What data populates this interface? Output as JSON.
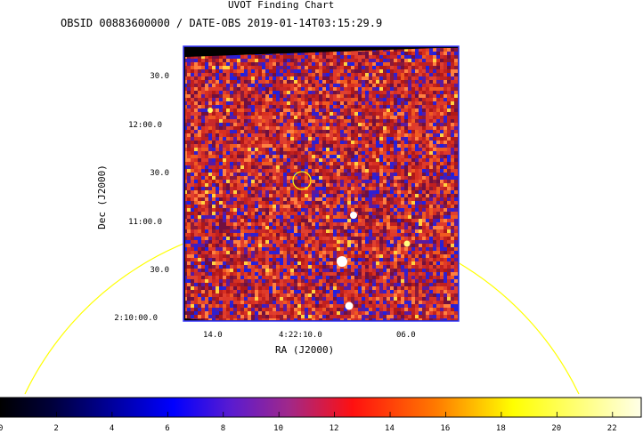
{
  "header": {
    "title": "UVOT Finding Chart",
    "subtitle": "OBSID 00883600000 / DATE-OBS 2019-01-14T03:15:29.9"
  },
  "axes": {
    "xlabel": "RA (J2000)",
    "ylabel": "Dec (J2000)",
    "x_ticks": [
      "14.0",
      "4:22:10.0",
      "06.0"
    ],
    "y_ticks": [
      "30.0",
      "12:00.0",
      "30.0",
      "11:00.0",
      "30.0",
      "2:10:00.0"
    ]
  },
  "colorbar": {
    "ticks": [
      "0",
      "2",
      "4",
      "6",
      "8",
      "10",
      "12",
      "14",
      "16",
      "18",
      "20",
      "22"
    ],
    "colormap": "hot-blue",
    "range": [
      0,
      23
    ]
  },
  "image": {
    "background_color": "#c42a2a",
    "frame_color": "#3a3aff",
    "overlay_circle_color": "#ffff00"
  }
}
